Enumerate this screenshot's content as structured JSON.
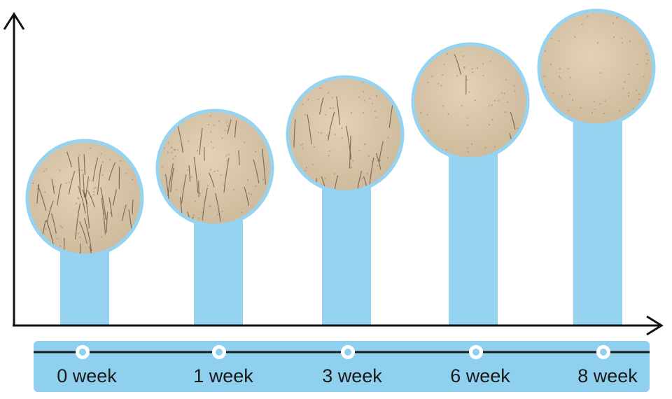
{
  "timeline": {
    "labels": [
      "0 week",
      "1 week",
      "3 week",
      "6 week",
      "8 week"
    ]
  }
}
